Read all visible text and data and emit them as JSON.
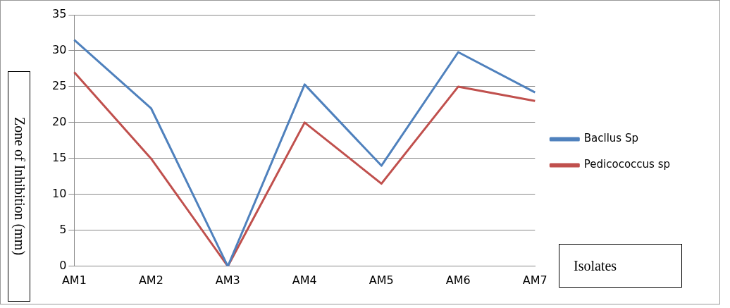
{
  "chart_data": {
    "type": "line",
    "xlabel": "Isolates",
    "ylabel": "Zone of Inhibition (mm)",
    "categories": [
      "AM1",
      "AM2",
      "AM3",
      "AM4",
      "AM5",
      "AM6",
      "AM7"
    ],
    "series": [
      {
        "name": "Bacllus Sp",
        "color": "#4f81bd",
        "values": [
          31.5,
          22,
          0,
          25.3,
          14,
          29.8,
          24.2
        ]
      },
      {
        "name": "Pedicococcus sp",
        "color": "#c0504d",
        "values": [
          27,
          15,
          0,
          20,
          11.5,
          25,
          23
        ]
      }
    ],
    "ylim": [
      0,
      35
    ],
    "yticks": [
      0,
      5,
      10,
      15,
      20,
      25,
      30,
      35
    ],
    "grid": "y",
    "legend": "right",
    "marker": "none"
  }
}
